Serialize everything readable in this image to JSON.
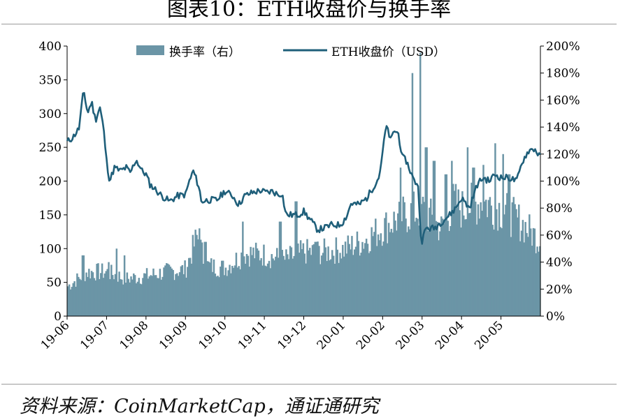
{
  "figure": {
    "title": "图表10：ETH收盘价与换手率",
    "source": "资料来源：CoinMarketCap，通证通研究"
  },
  "chart_data": {
    "type": "bar+line",
    "title": "图表10：ETH收盘价与换手率",
    "x_tick_labels": [
      "19-06",
      "19-07",
      "19-08",
      "19-09",
      "19-10",
      "19-11",
      "19-12",
      "20-01",
      "20-02",
      "20-03",
      "20-04",
      "20-05"
    ],
    "y_left": {
      "label": "",
      "range": [
        0,
        400
      ],
      "ticks": [
        0,
        50,
        100,
        150,
        200,
        250,
        300,
        350,
        400
      ]
    },
    "y_right": {
      "label": "",
      "range": [
        0,
        200
      ],
      "unit": "%",
      "ticks": [
        "0%",
        "20%",
        "40%",
        "60%",
        "80%",
        "100%",
        "120%",
        "140%",
        "160%",
        "180%",
        "200%"
      ]
    },
    "legend_placement": "top",
    "grid": false,
    "colors": {
      "bar": "#6b95a6",
      "line": "#1f5f7a"
    },
    "series": [
      {
        "name": "换手率（右）",
        "kind": "bar",
        "axis": "right",
        "unit": "%",
        "month_points": [
          [
            0,
            22
          ],
          [
            0.5,
            33
          ],
          [
            1,
            33
          ],
          [
            1.5,
            28
          ],
          [
            2,
            30
          ],
          [
            2.5,
            33
          ],
          [
            3,
            35
          ],
          [
            3.3,
            60
          ],
          [
            3.5,
            38
          ],
          [
            4,
            36
          ],
          [
            4.5,
            47
          ],
          [
            5,
            46
          ],
          [
            5.5,
            42
          ],
          [
            6,
            48
          ],
          [
            6.5,
            48
          ],
          [
            7,
            50
          ],
          [
            7.5,
            56
          ],
          [
            8,
            66
          ],
          [
            8.5,
            75
          ],
          [
            9,
            80
          ],
          [
            9.5,
            65
          ],
          [
            9.8,
            85
          ],
          [
            10,
            80
          ],
          [
            10.5,
            86
          ],
          [
            11,
            80
          ],
          [
            11.5,
            70
          ],
          [
            12,
            56
          ]
        ],
        "spikes": [
          [
            0.4,
            45
          ],
          [
            1.05,
            40
          ],
          [
            1.25,
            50
          ],
          [
            1.45,
            45
          ],
          [
            3.35,
            65
          ],
          [
            3.5,
            55
          ],
          [
            4.45,
            70
          ],
          [
            5.4,
            70
          ],
          [
            5.8,
            85
          ],
          [
            6.3,
            55
          ],
          [
            8.45,
            110
          ],
          [
            8.75,
            180
          ],
          [
            8.95,
            195
          ],
          [
            9.1,
            125
          ],
          [
            9.3,
            115
          ],
          [
            9.6,
            105
          ],
          [
            9.75,
            115
          ],
          [
            10.15,
            125
          ],
          [
            10.3,
            110
          ],
          [
            10.55,
            112
          ],
          [
            10.85,
            128
          ],
          [
            11.05,
            120
          ],
          [
            11.2,
            105
          ]
        ]
      },
      {
        "name": "ETH收盘价（USD）",
        "kind": "line",
        "axis": "left",
        "unit": "USD",
        "month_points": [
          [
            0,
            258
          ],
          [
            0.15,
            265
          ],
          [
            0.3,
            278
          ],
          [
            0.42,
            335
          ],
          [
            0.52,
            300
          ],
          [
            0.62,
            318
          ],
          [
            0.72,
            290
          ],
          [
            0.83,
            310
          ],
          [
            0.92,
            280
          ],
          [
            1.0,
            230
          ],
          [
            1.08,
            200
          ],
          [
            1.2,
            220
          ],
          [
            1.35,
            215
          ],
          [
            1.5,
            220
          ],
          [
            1.6,
            212
          ],
          [
            1.75,
            232
          ],
          [
            1.9,
            215
          ],
          [
            2.0,
            210
          ],
          [
            2.1,
            195
          ],
          [
            2.25,
            187
          ],
          [
            2.4,
            178
          ],
          [
            2.6,
            170
          ],
          [
            2.8,
            178
          ],
          [
            3.0,
            180
          ],
          [
            3.1,
            200
          ],
          [
            3.2,
            215
          ],
          [
            3.35,
            190
          ],
          [
            3.4,
            170
          ],
          [
            3.6,
            172
          ],
          [
            3.8,
            172
          ],
          [
            4.0,
            185
          ],
          [
            4.2,
            178
          ],
          [
            4.35,
            165
          ],
          [
            4.5,
            178
          ],
          [
            4.7,
            183
          ],
          [
            4.9,
            186
          ],
          [
            5.05,
            183
          ],
          [
            5.2,
            185
          ],
          [
            5.35,
            180
          ],
          [
            5.45,
            182
          ],
          [
            5.55,
            150
          ],
          [
            5.7,
            150
          ],
          [
            5.85,
            150
          ],
          [
            6.0,
            155
          ],
          [
            6.2,
            140
          ],
          [
            6.35,
            128
          ],
          [
            6.5,
            130
          ],
          [
            6.7,
            135
          ],
          [
            6.9,
            135
          ],
          [
            7.0,
            140
          ],
          [
            7.1,
            150
          ],
          [
            7.2,
            167
          ],
          [
            7.4,
            165
          ],
          [
            7.6,
            175
          ],
          [
            7.75,
            190
          ],
          [
            7.9,
            205
          ],
          [
            8.0,
            240
          ],
          [
            8.05,
            270
          ],
          [
            8.12,
            280
          ],
          [
            8.2,
            260
          ],
          [
            8.3,
            275
          ],
          [
            8.4,
            270
          ],
          [
            8.5,
            235
          ],
          [
            8.6,
            230
          ],
          [
            8.7,
            215
          ],
          [
            8.8,
            200
          ],
          [
            8.9,
            195
          ],
          [
            8.95,
            130
          ],
          [
            9.0,
            112
          ],
          [
            9.1,
            130
          ],
          [
            9.3,
            130
          ],
          [
            9.5,
            140
          ],
          [
            9.7,
            150
          ],
          [
            9.85,
            160
          ],
          [
            10.0,
            175
          ],
          [
            10.2,
            160
          ],
          [
            10.4,
            195
          ],
          [
            10.55,
            205
          ],
          [
            10.7,
            200
          ],
          [
            10.85,
            210
          ],
          [
            11.0,
            205
          ],
          [
            11.2,
            205
          ],
          [
            11.4,
            200
          ],
          [
            11.55,
            230
          ],
          [
            11.7,
            245
          ],
          [
            11.85,
            248
          ],
          [
            12.0,
            235
          ]
        ]
      }
    ],
    "legend": [
      "换手率（右）",
      "ETH收盘价（USD）"
    ]
  }
}
